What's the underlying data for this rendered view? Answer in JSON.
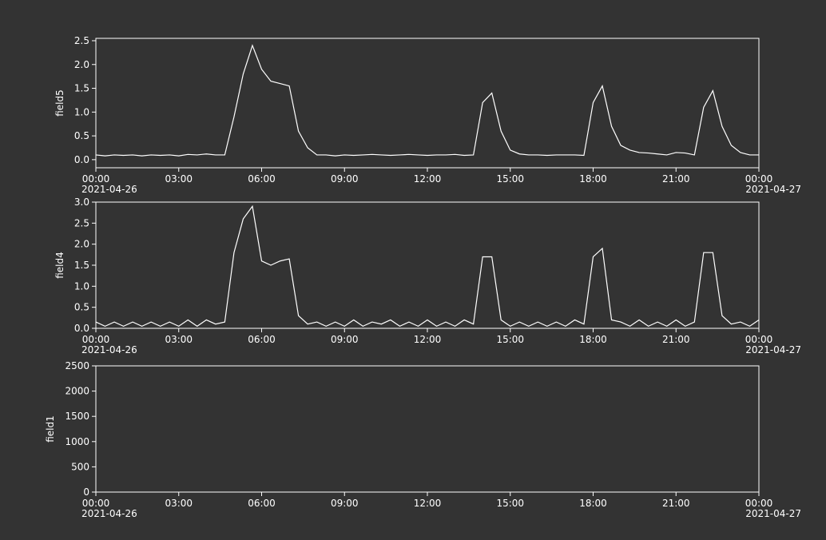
{
  "chart_data": [
    {
      "type": "line",
      "ylabel": "field5",
      "x": [
        "2021-04-26 00:00",
        "2021-04-26 00:20",
        "2021-04-26 00:40",
        "2021-04-26 01:00",
        "2021-04-26 01:20",
        "2021-04-26 01:40",
        "2021-04-26 02:00",
        "2021-04-26 02:20",
        "2021-04-26 02:40",
        "2021-04-26 03:00",
        "2021-04-26 03:20",
        "2021-04-26 03:40",
        "2021-04-26 04:00",
        "2021-04-26 04:20",
        "2021-04-26 04:40",
        "2021-04-26 05:00",
        "2021-04-26 05:20",
        "2021-04-26 05:40",
        "2021-04-26 06:00",
        "2021-04-26 06:20",
        "2021-04-26 06:40",
        "2021-04-26 07:00",
        "2021-04-26 07:20",
        "2021-04-26 07:40",
        "2021-04-26 08:00",
        "2021-04-26 08:20",
        "2021-04-26 08:40",
        "2021-04-26 09:00",
        "2021-04-26 09:20",
        "2021-04-26 09:40",
        "2021-04-26 10:00",
        "2021-04-26 10:20",
        "2021-04-26 10:40",
        "2021-04-26 11:00",
        "2021-04-26 11:20",
        "2021-04-26 11:40",
        "2021-04-26 12:00",
        "2021-04-26 12:20",
        "2021-04-26 12:40",
        "2021-04-26 13:00",
        "2021-04-26 13:20",
        "2021-04-26 13:40",
        "2021-04-26 14:00",
        "2021-04-26 14:20",
        "2021-04-26 14:40",
        "2021-04-26 15:00",
        "2021-04-26 15:20",
        "2021-04-26 15:40",
        "2021-04-26 16:00",
        "2021-04-26 16:20",
        "2021-04-26 16:40",
        "2021-04-26 17:00",
        "2021-04-26 17:20",
        "2021-04-26 17:40",
        "2021-04-26 18:00",
        "2021-04-26 18:20",
        "2021-04-26 18:40",
        "2021-04-26 19:00",
        "2021-04-26 19:20",
        "2021-04-26 19:40",
        "2021-04-26 20:00",
        "2021-04-26 20:20",
        "2021-04-26 20:40",
        "2021-04-26 21:00",
        "2021-04-26 21:20",
        "2021-04-26 21:40",
        "2021-04-26 22:00",
        "2021-04-26 22:20",
        "2021-04-26 22:40",
        "2021-04-26 23:00",
        "2021-04-26 23:20",
        "2021-04-26 23:40",
        "2021-04-27 00:00"
      ],
      "series": [
        {
          "color": "#ffffff",
          "values": [
            0.1,
            0.08,
            0.1,
            0.09,
            0.1,
            0.08,
            0.1,
            0.09,
            0.1,
            0.08,
            0.11,
            0.1,
            0.12,
            0.1,
            0.1,
            0.9,
            1.8,
            2.4,
            1.9,
            1.65,
            1.6,
            1.55,
            0.6,
            0.25,
            0.1,
            0.1,
            0.08,
            0.1,
            0.09,
            0.1,
            0.11,
            0.1,
            0.09,
            0.1,
            0.11,
            0.1,
            0.09,
            0.1,
            0.1,
            0.11,
            0.09,
            0.1,
            1.2,
            1.4,
            0.6,
            0.2,
            0.12,
            0.1,
            0.1,
            0.09,
            0.1,
            0.1,
            0.1,
            0.09,
            1.2,
            1.55,
            0.7,
            0.3,
            0.2,
            0.15,
            0.14,
            0.12,
            0.1,
            0.15,
            0.14,
            0.1,
            1.1,
            1.45,
            0.7,
            0.3,
            0.15,
            0.1,
            0.1
          ]
        }
      ],
      "xlim": [
        "2021-04-26 00:00",
        "2021-04-27 00:00"
      ],
      "xticks": [
        {
          "value": "2021-04-26 00:00",
          "label": "00:00",
          "sublabel": "2021-04-26"
        },
        {
          "value": "2021-04-26 03:00",
          "label": "03:00"
        },
        {
          "value": "2021-04-26 06:00",
          "label": "06:00"
        },
        {
          "value": "2021-04-26 09:00",
          "label": "09:00"
        },
        {
          "value": "2021-04-26 12:00",
          "label": "12:00"
        },
        {
          "value": "2021-04-26 15:00",
          "label": "15:00"
        },
        {
          "value": "2021-04-26 18:00",
          "label": "18:00"
        },
        {
          "value": "2021-04-26 21:00",
          "label": "21:00"
        },
        {
          "value": "2021-04-27 00:00",
          "label": "00:00",
          "sublabel": "2021-04-27"
        }
      ],
      "ylim": [
        -0.17,
        2.55
      ],
      "yticks": [
        {
          "value": 0,
          "label": "0.0"
        },
        0.5,
        {
          "value": 1,
          "label": "1.0"
        },
        1.5,
        {
          "value": 2,
          "label": "2.0"
        },
        2.5
      ]
    },
    {
      "type": "line",
      "ylabel": "field4",
      "x": [
        "2021-04-26 00:00",
        "2021-04-26 00:20",
        "2021-04-26 00:40",
        "2021-04-26 01:00",
        "2021-04-26 01:20",
        "2021-04-26 01:40",
        "2021-04-26 02:00",
        "2021-04-26 02:20",
        "2021-04-26 02:40",
        "2021-04-26 03:00",
        "2021-04-26 03:20",
        "2021-04-26 03:40",
        "2021-04-26 04:00",
        "2021-04-26 04:20",
        "2021-04-26 04:40",
        "2021-04-26 05:00",
        "2021-04-26 05:20",
        "2021-04-26 05:40",
        "2021-04-26 06:00",
        "2021-04-26 06:20",
        "2021-04-26 06:40",
        "2021-04-26 07:00",
        "2021-04-26 07:20",
        "2021-04-26 07:40",
        "2021-04-26 08:00",
        "2021-04-26 08:20",
        "2021-04-26 08:40",
        "2021-04-26 09:00",
        "2021-04-26 09:20",
        "2021-04-26 09:40",
        "2021-04-26 10:00",
        "2021-04-26 10:20",
        "2021-04-26 10:40",
        "2021-04-26 11:00",
        "2021-04-26 11:20",
        "2021-04-26 11:40",
        "2021-04-26 12:00",
        "2021-04-26 12:20",
        "2021-04-26 12:40",
        "2021-04-26 13:00",
        "2021-04-26 13:20",
        "2021-04-26 13:40",
        "2021-04-26 14:00",
        "2021-04-26 14:20",
        "2021-04-26 14:40",
        "2021-04-26 15:00",
        "2021-04-26 15:20",
        "2021-04-26 15:40",
        "2021-04-26 16:00",
        "2021-04-26 16:20",
        "2021-04-26 16:40",
        "2021-04-26 17:00",
        "2021-04-26 17:20",
        "2021-04-26 17:40",
        "2021-04-26 18:00",
        "2021-04-26 18:20",
        "2021-04-26 18:40",
        "2021-04-26 19:00",
        "2021-04-26 19:20",
        "2021-04-26 19:40",
        "2021-04-26 20:00",
        "2021-04-26 20:20",
        "2021-04-26 20:40",
        "2021-04-26 21:00",
        "2021-04-26 21:20",
        "2021-04-26 21:40",
        "2021-04-26 22:00",
        "2021-04-26 22:20",
        "2021-04-26 22:40",
        "2021-04-26 23:00",
        "2021-04-26 23:20",
        "2021-04-26 23:40",
        "2021-04-27 00:00"
      ],
      "series": [
        {
          "color": "#ffffff",
          "values": [
            0.15,
            0.05,
            0.15,
            0.05,
            0.15,
            0.05,
            0.15,
            0.05,
            0.15,
            0.05,
            0.2,
            0.05,
            0.2,
            0.1,
            0.15,
            1.8,
            2.6,
            2.9,
            1.6,
            1.5,
            1.6,
            1.65,
            0.3,
            0.1,
            0.15,
            0.05,
            0.15,
            0.05,
            0.2,
            0.05,
            0.15,
            0.1,
            0.2,
            0.05,
            0.15,
            0.05,
            0.2,
            0.05,
            0.15,
            0.05,
            0.2,
            0.1,
            1.7,
            1.7,
            0.2,
            0.05,
            0.15,
            0.05,
            0.15,
            0.05,
            0.15,
            0.05,
            0.2,
            0.1,
            1.7,
            1.9,
            0.2,
            0.15,
            0.05,
            0.2,
            0.05,
            0.15,
            0.05,
            0.2,
            0.05,
            0.15,
            1.8,
            1.8,
            0.3,
            0.1,
            0.15,
            0.05,
            0.2
          ]
        }
      ],
      "xlim": [
        "2021-04-26 00:00",
        "2021-04-27 00:00"
      ],
      "xticks": [
        {
          "value": "2021-04-26 00:00",
          "label": "00:00",
          "sublabel": "2021-04-26"
        },
        {
          "value": "2021-04-26 03:00",
          "label": "03:00"
        },
        {
          "value": "2021-04-26 06:00",
          "label": "06:00"
        },
        {
          "value": "2021-04-26 09:00",
          "label": "09:00"
        },
        {
          "value": "2021-04-26 12:00",
          "label": "12:00"
        },
        {
          "value": "2021-04-26 15:00",
          "label": "15:00"
        },
        {
          "value": "2021-04-26 18:00",
          "label": "18:00"
        },
        {
          "value": "2021-04-26 21:00",
          "label": "21:00"
        },
        {
          "value": "2021-04-27 00:00",
          "label": "00:00",
          "sublabel": "2021-04-27"
        }
      ],
      "ylim": [
        0,
        3
      ],
      "yticks": [
        {
          "value": 0,
          "label": "0.0"
        },
        0.5,
        {
          "value": 1,
          "label": "1.0"
        },
        1.5,
        {
          "value": 2,
          "label": "2.0"
        },
        2.5,
        {
          "value": 3,
          "label": "3.0"
        }
      ]
    },
    {
      "type": "line",
      "ylabel": "field1",
      "xlim": [
        "2021-04-26 00:00",
        "2021-04-27 00:00"
      ],
      "xticks": [
        {
          "value": "2021-04-26 00:00",
          "label": "00:00",
          "sublabel": "2021-04-26"
        },
        {
          "value": "2021-04-26 03:00",
          "label": "03:00"
        },
        {
          "value": "2021-04-26 06:00",
          "label": "06:00"
        },
        {
          "value": "2021-04-26 09:00",
          "label": "09:00"
        },
        {
          "value": "2021-04-26 12:00",
          "label": "12:00"
        },
        {
          "value": "2021-04-26 15:00",
          "label": "15:00"
        },
        {
          "value": "2021-04-26 18:00",
          "label": "18:00"
        },
        {
          "value": "2021-04-26 21:00",
          "label": "21:00"
        },
        {
          "value": "2021-04-27 00:00",
          "label": "00:00",
          "sublabel": "2021-04-27"
        }
      ],
      "ylim": [
        0,
        2500
      ],
      "yticks": [
        0,
        500,
        1000,
        1500,
        2000,
        2500
      ]
    }
  ]
}
